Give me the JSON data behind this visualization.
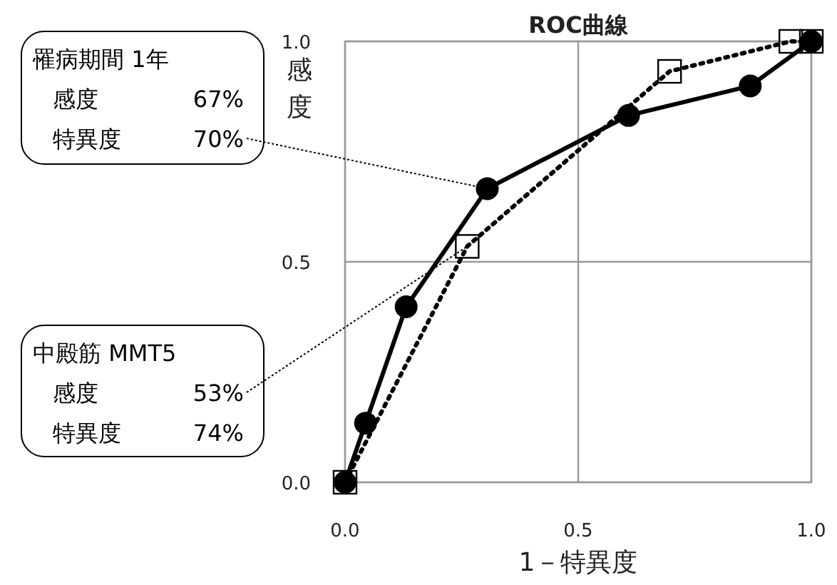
{
  "chart_data": {
    "type": "line",
    "title": "ROC曲線",
    "xlabel": "1－特異度",
    "ylabel": "感度",
    "xlim": [
      0,
      1
    ],
    "ylim": [
      0,
      1
    ],
    "xticks": [
      {
        "value": 0,
        "label": "0.0"
      },
      {
        "value": 0.5,
        "label": "0.5"
      },
      {
        "value": 1,
        "label": "1.0"
      }
    ],
    "yticks": [
      {
        "value": 0,
        "label": "0.0"
      },
      {
        "value": 0.5,
        "label": "0.5"
      },
      {
        "value": 1,
        "label": "1.0"
      }
    ],
    "grid": true,
    "legend": false,
    "series": [
      {
        "color": "#000000",
        "marker": "circle",
        "line_style": "solid",
        "x": [
          0,
          0.044,
          0.131,
          0.305,
          0.608,
          0.869,
          1
        ],
        "values": [
          0,
          0.134,
          0.398,
          0.666,
          0.832,
          0.899,
          1
        ]
      },
      {
        "color": "#000000",
        "marker": "square",
        "line_style": "dotted",
        "x": [
          0,
          0.262,
          0.696,
          0.956,
          1
        ],
        "values": [
          0,
          0.535,
          0.932,
          1,
          1
        ]
      }
    ],
    "annotations": [
      "罹病期間 1年",
      "感度 67%",
      {
        "text": "特異度 70%",
        "x": 0.305,
        "y": 0.666
      },
      "中殿筋 MMT5",
      {
        "text": "感度 53%",
        "x": 0.262,
        "y": 0.535
      },
      "特異度 74%"
    ]
  }
}
